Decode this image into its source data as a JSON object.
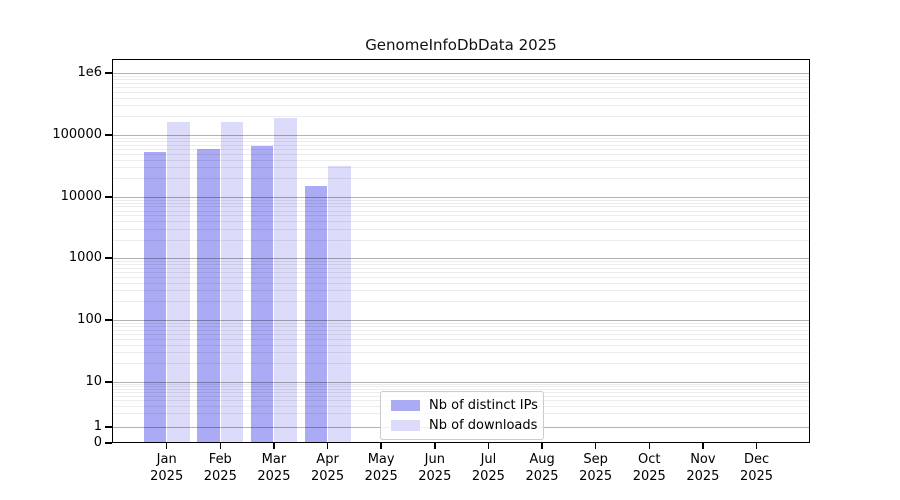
{
  "figure": {
    "title": "GenomeInfoDbData 2025"
  },
  "chart_data": {
    "type": "bar",
    "title": "GenomeInfoDbData 2025",
    "categories": [
      "Jan",
      "Feb",
      "Mar",
      "Apr",
      "May",
      "Jun",
      "Jul",
      "Aug",
      "Sep",
      "Oct",
      "Nov",
      "Dec"
    ],
    "category_year": "2025",
    "series": [
      {
        "name": "Nb of distinct IPs",
        "color": "#aaaaf5",
        "values": [
          54000,
          60000,
          67000,
          15000,
          null,
          null,
          null,
          null,
          null,
          null,
          null,
          null
        ]
      },
      {
        "name": "Nb of downloads",
        "color": "#dcdcfa",
        "values": [
          160000,
          160000,
          190000,
          32000,
          null,
          null,
          null,
          null,
          null,
          null,
          null,
          null
        ]
      }
    ],
    "yscale": "symlog (log decades, 0 at baseline)",
    "yticks": {
      "labels": [
        "0",
        "1",
        "10",
        "100",
        "1000",
        "10000",
        "100000",
        "1e6"
      ],
      "values": [
        0,
        1,
        10,
        100,
        1000,
        10000,
        100000,
        1000000
      ]
    },
    "ylim": [
      0,
      1700000
    ],
    "grid": "horizontal major + log minor gridlines, drawn over translucent bars",
    "legend": {
      "position": "inside bottom-center",
      "labels": [
        "Nb of distinct IPs",
        "Nb of downloads"
      ]
    }
  }
}
